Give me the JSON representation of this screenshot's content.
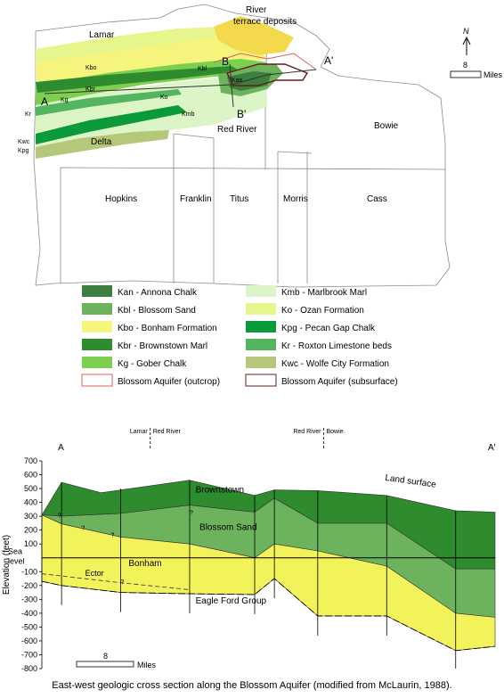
{
  "map": {
    "counties": [
      "Lamar",
      "Red River",
      "Bowie",
      "Delta",
      "Hopkins",
      "Franklin",
      "Titus",
      "Morris",
      "Cass"
    ],
    "unit_codes": [
      "Kbo",
      "Kbl",
      "Kg",
      "Kbr",
      "Kmb",
      "Ko",
      "Kan",
      "Kr",
      "Kwc",
      "Kpg"
    ],
    "terrace_label": "River\nterrace deposits",
    "section_labels": {
      "a": "A",
      "a_prime": "A'",
      "b": "B",
      "b_prime": "B'"
    },
    "north_label": "N",
    "scale": {
      "value": "8",
      "unit": "Miles"
    }
  },
  "legend": [
    {
      "text": "Kan - Annona Chalk",
      "color": "#3d7f3f",
      "kind": "fill"
    },
    {
      "text": "Kmb - Marlbrook Marl",
      "color": "#dcf5c6",
      "kind": "fill"
    },
    {
      "text": "Kbl - Blossom Sand",
      "color": "#6db35d",
      "kind": "fill"
    },
    {
      "text": "Ko - Ozan Formation",
      "color": "#e6f58c",
      "kind": "fill"
    },
    {
      "text": "Kbo - Bonham Formation",
      "color": "#f5f57e",
      "kind": "fill"
    },
    {
      "text": "Kpg - Pecan Gap Chalk",
      "color": "#0a9a3a",
      "kind": "fill"
    },
    {
      "text": "Kbr - Brownstown Marl",
      "color": "#2e8b2e",
      "kind": "fill"
    },
    {
      "text": "Kr - Roxton Limestone beds",
      "color": "#54b560",
      "kind": "fill"
    },
    {
      "text": "Kg - Gober Chalk",
      "color": "#7ccf4f",
      "kind": "fill"
    },
    {
      "text": "Kwc - Wolfe City Formation",
      "color": "#b5c87a",
      "kind": "fill"
    },
    {
      "text": "Blossom Aquifer (outcrop)",
      "color": "#d9605c",
      "kind": "outline"
    },
    {
      "text": "Blossom Aquifer (subsurface)",
      "color": "#6a1b1b",
      "kind": "outline"
    }
  ],
  "cross_section": {
    "ends": {
      "left": "A",
      "right": "A'"
    },
    "county_markers": [
      {
        "left": "Lamar",
        "right": "Red River",
        "km": 55
      },
      {
        "left": "Red River",
        "right": "Bowie",
        "km": 143
      }
    ],
    "y_axis": {
      "label": "Elevation (feet)",
      "range": [
        -800,
        700
      ],
      "ticks": [
        700,
        600,
        500,
        400,
        300,
        200,
        100,
        -100,
        -200,
        -300,
        -400,
        -500,
        -600,
        -700,
        -800
      ]
    },
    "sea_level_label": "Sea\nlevel",
    "unit_labels": {
      "land_surface": "Land surface",
      "brownstown": "Brownstown",
      "blossom": "Blossom Sand",
      "bonham": "Bonham",
      "ector": "Ector",
      "eagle_ford": "Eagle Ford Group",
      "query": "?"
    },
    "colors": {
      "brownstown": "#2e8b2e",
      "blossom": "#6db35d",
      "bonham": "#f2f25a"
    },
    "land_surface": [
      [
        0,
        310
      ],
      [
        10,
        545
      ],
      [
        30,
        470
      ],
      [
        75,
        560
      ],
      [
        108,
        450
      ],
      [
        118,
        490
      ],
      [
        140,
        485
      ],
      [
        175,
        450
      ],
      [
        210,
        340
      ],
      [
        230,
        330
      ]
    ],
    "brownstown_base": [
      [
        0,
        310
      ],
      [
        10,
        300
      ],
      [
        40,
        320
      ],
      [
        75,
        380
      ],
      [
        108,
        330
      ],
      [
        118,
        430
      ],
      [
        140,
        250
      ],
      [
        175,
        250
      ],
      [
        210,
        -80
      ],
      [
        230,
        -80
      ]
    ],
    "blossom_base": [
      [
        0,
        310
      ],
      [
        10,
        245
      ],
      [
        40,
        150
      ],
      [
        75,
        100
      ],
      [
        108,
        0
      ],
      [
        118,
        100
      ],
      [
        140,
        50
      ],
      [
        175,
        -60
      ],
      [
        210,
        -400
      ],
      [
        230,
        -430
      ]
    ],
    "bonham_base": [
      [
        0,
        -170
      ],
      [
        10,
        -200
      ],
      [
        40,
        -250
      ],
      [
        75,
        -260
      ],
      [
        108,
        -265
      ],
      [
        118,
        -150
      ],
      [
        140,
        -420
      ],
      [
        175,
        -420
      ],
      [
        210,
        -670
      ],
      [
        230,
        -640
      ]
    ],
    "ector_base": [
      [
        0,
        -115
      ],
      [
        40,
        -180
      ],
      [
        75,
        -230
      ]
    ],
    "verticals_km": [
      10,
      40,
      75,
      108,
      118,
      140,
      175,
      210
    ],
    "scale": {
      "value": "8",
      "unit": "Miles"
    }
  },
  "caption": "East-west geologic cross section along the Blossom Aquifer (modified from McLaurin, 1988)."
}
